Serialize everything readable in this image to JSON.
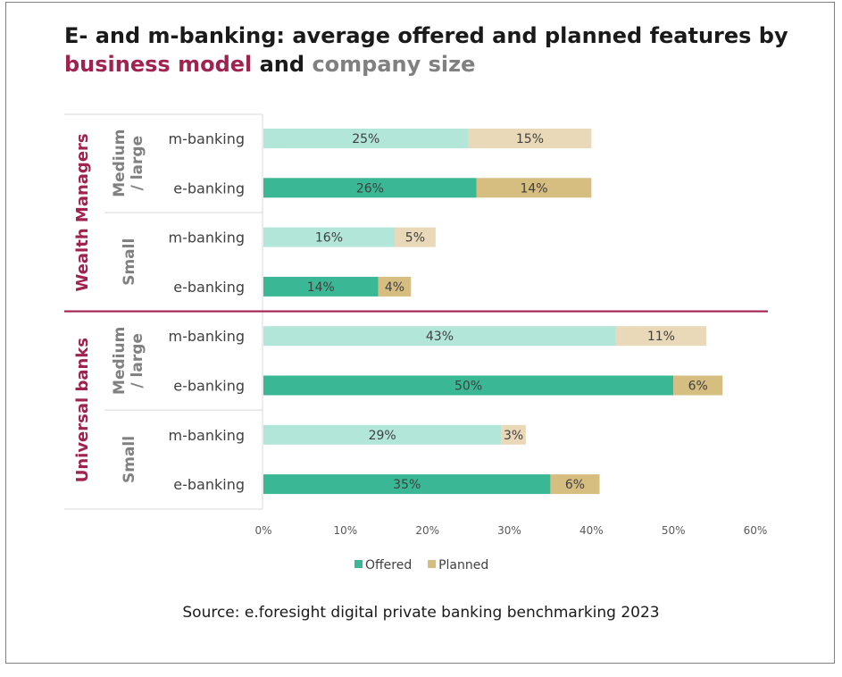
{
  "title": {
    "part1": "E- and m-banking: average offered and planned features by",
    "part2": "business model",
    "part3": "and",
    "part4": "company size"
  },
  "source": "Source: e.foresight digital private banking benchmarking 2023",
  "colors": {
    "offered_m": "#b2e6d9",
    "offered_e": "#3ab795",
    "planned_m": "#ead9b8",
    "planned_e": "#d6bd80",
    "business_model": "#a1224f",
    "company_size": "#808080"
  },
  "chart_data": {
    "type": "bar",
    "orientation": "horizontal",
    "stacked": true,
    "value_format": "percent",
    "xlim": [
      0,
      60
    ],
    "xticks": [
      "0%",
      "10%",
      "20%",
      "30%",
      "40%",
      "50%",
      "60%"
    ],
    "groups": [
      {
        "name": "Wealth Managers",
        "subgroups": [
          {
            "name": "Medium / large",
            "rows": [
              {
                "label": "m-banking",
                "offered": 25,
                "planned": 15,
                "offered_label": "25%",
                "planned_label": "15%"
              },
              {
                "label": "e-banking",
                "offered": 26,
                "planned": 14,
                "offered_label": "26%",
                "planned_label": "14%"
              }
            ]
          },
          {
            "name": "Small",
            "rows": [
              {
                "label": "m-banking",
                "offered": 16,
                "planned": 5,
                "offered_label": "16%",
                "planned_label": "5%"
              },
              {
                "label": "e-banking",
                "offered": 14,
                "planned": 4,
                "offered_label": "14%",
                "planned_label": "4%"
              }
            ]
          }
        ]
      },
      {
        "name": "Universal banks",
        "subgroups": [
          {
            "name": "Medium / large",
            "rows": [
              {
                "label": "m-banking",
                "offered": 43,
                "planned": 11,
                "offered_label": "43%",
                "planned_label": "11%"
              },
              {
                "label": "e-banking",
                "offered": 50,
                "planned": 6,
                "offered_label": "50%",
                "planned_label": "6%"
              }
            ]
          },
          {
            "name": "Small",
            "rows": [
              {
                "label": "m-banking",
                "offered": 29,
                "planned": 3,
                "offered_label": "29%",
                "planned_label": "3%"
              },
              {
                "label": "e-banking",
                "offered": 35,
                "planned": 6,
                "offered_label": "35%",
                "planned_label": "6%"
              }
            ]
          }
        ]
      }
    ],
    "series": [
      {
        "name": "Offered"
      },
      {
        "name": "Planned"
      }
    ],
    "legend": "bottom-center"
  }
}
